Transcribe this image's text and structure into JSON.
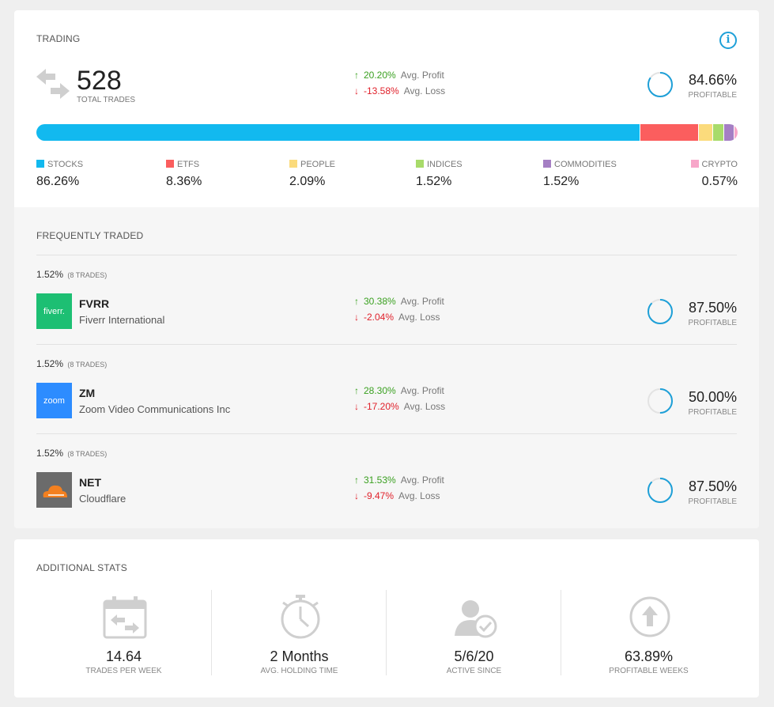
{
  "trading": {
    "title": "TRADING",
    "info_icon": "info-icon",
    "total_trades": "528",
    "total_caption": "TOTAL TRADES",
    "avg_profit_value": "20.20%",
    "avg_profit_label": "Avg. Profit",
    "avg_loss_value": "-13.58%",
    "avg_loss_label": "Avg. Loss",
    "profitable_pct": "84.66%",
    "profitable_fraction": 0.8466,
    "profitable_caption": "PROFITABLE",
    "allocation": [
      {
        "name": "STOCKS",
        "value": "86.26%",
        "share": 86.26,
        "color": "#12b9ef"
      },
      {
        "name": "ETFS",
        "value": "8.36%",
        "share": 8.36,
        "color": "#fb5e5e"
      },
      {
        "name": "PEOPLE",
        "value": "2.09%",
        "share": 2.09,
        "color": "#fbdb7c"
      },
      {
        "name": "INDICES",
        "value": "1.52%",
        "share": 1.52,
        "color": "#a8db6a"
      },
      {
        "name": "COMMODITIES",
        "value": "1.52%",
        "share": 1.52,
        "color": "#a57fc4"
      },
      {
        "name": "CRYPTO",
        "value": "0.57%",
        "share": 0.57,
        "color": "#f7a6c9"
      }
    ]
  },
  "frequently_traded": {
    "title": "FREQUENTLY TRADED",
    "items": [
      {
        "share": "1.52%",
        "trades": "(8 TRADES)",
        "ticker": "FVRR",
        "company": "Fiverr International",
        "logo_text": "fiverr.",
        "logo_color": "#1dbf73",
        "profit": "30.38%",
        "profit_label": "Avg. Profit",
        "loss": "-2.04%",
        "loss_label": "Avg. Loss",
        "profitable": "87.50%",
        "profitable_fraction": 0.875,
        "profitable_caption": "PROFITABLE"
      },
      {
        "share": "1.52%",
        "trades": "(8 TRADES)",
        "ticker": "ZM",
        "company": "Zoom Video Communications Inc",
        "logo_text": "zoom",
        "logo_color": "#2d8cff",
        "profit": "28.30%",
        "profit_label": "Avg. Profit",
        "loss": "-17.20%",
        "loss_label": "Avg. Loss",
        "profitable": "50.00%",
        "profitable_fraction": 0.5,
        "profitable_caption": "PROFITABLE"
      },
      {
        "share": "1.52%",
        "trades": "(8 TRADES)",
        "ticker": "NET",
        "company": "Cloudflare",
        "logo_text": "",
        "logo_color": "#6b6b6b",
        "profit": "31.53%",
        "profit_label": "Avg. Profit",
        "loss": "-9.47%",
        "loss_label": "Avg. Loss",
        "profitable": "87.50%",
        "profitable_fraction": 0.875,
        "profitable_caption": "PROFITABLE"
      }
    ]
  },
  "additional_stats": {
    "title": "ADDITIONAL STATS",
    "items": [
      {
        "value": "14.64",
        "caption": "TRADES PER WEEK",
        "icon": "calendar-swap-icon"
      },
      {
        "value": "2 Months",
        "caption": "AVG. HOLDING TIME",
        "icon": "stopwatch-icon"
      },
      {
        "value": "5/6/20",
        "caption": "ACTIVE SINCE",
        "icon": "user-check-icon"
      },
      {
        "value": "63.89%",
        "caption": "PROFITABLE WEEKS",
        "icon": "arrow-up-circle-icon"
      }
    ]
  },
  "colors": {
    "accent": "#1ea0d8",
    "profit": "#3aa020",
    "loss": "#e0212b",
    "ring_track": "#e3e3e3"
  }
}
